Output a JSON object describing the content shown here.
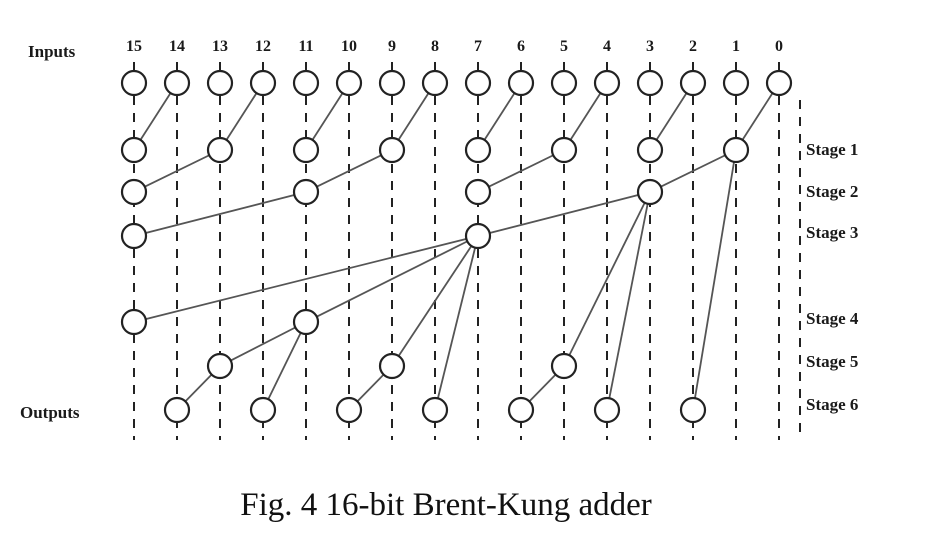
{
  "labels": {
    "inputs": "Inputs",
    "outputs": "Outputs",
    "caption": "Fig. 4 16-bit Brent-Kung adder"
  },
  "bits": [
    "15",
    "14",
    "13",
    "12",
    "11",
    "10",
    "9",
    "8",
    "7",
    "6",
    "5",
    "4",
    "3",
    "2",
    "1",
    "0"
  ],
  "stages": [
    {
      "label": "Stage 1",
      "nodes": [
        15,
        13,
        11,
        9,
        7,
        5,
        3,
        1
      ],
      "from": [
        14,
        12,
        10,
        8,
        6,
        4,
        2,
        0
      ]
    },
    {
      "label": "Stage 2",
      "nodes": [
        15,
        11,
        7,
        3
      ],
      "from": [
        13,
        9,
        5,
        1
      ]
    },
    {
      "label": "Stage 3",
      "nodes": [
        15,
        7
      ],
      "from": [
        11,
        3
      ]
    },
    {
      "label": "Stage 4",
      "nodes": [
        15,
        11
      ],
      "from": [
        7,
        7
      ]
    },
    {
      "label": "Stage 5",
      "nodes": [
        13,
        9,
        5
      ],
      "from": [
        11,
        7,
        3
      ]
    },
    {
      "label": "Stage 6",
      "nodes": [
        14,
        12,
        10,
        8,
        6,
        4,
        2
      ],
      "from": [
        13,
        11,
        9,
        7,
        5,
        3,
        1
      ]
    }
  ]
}
